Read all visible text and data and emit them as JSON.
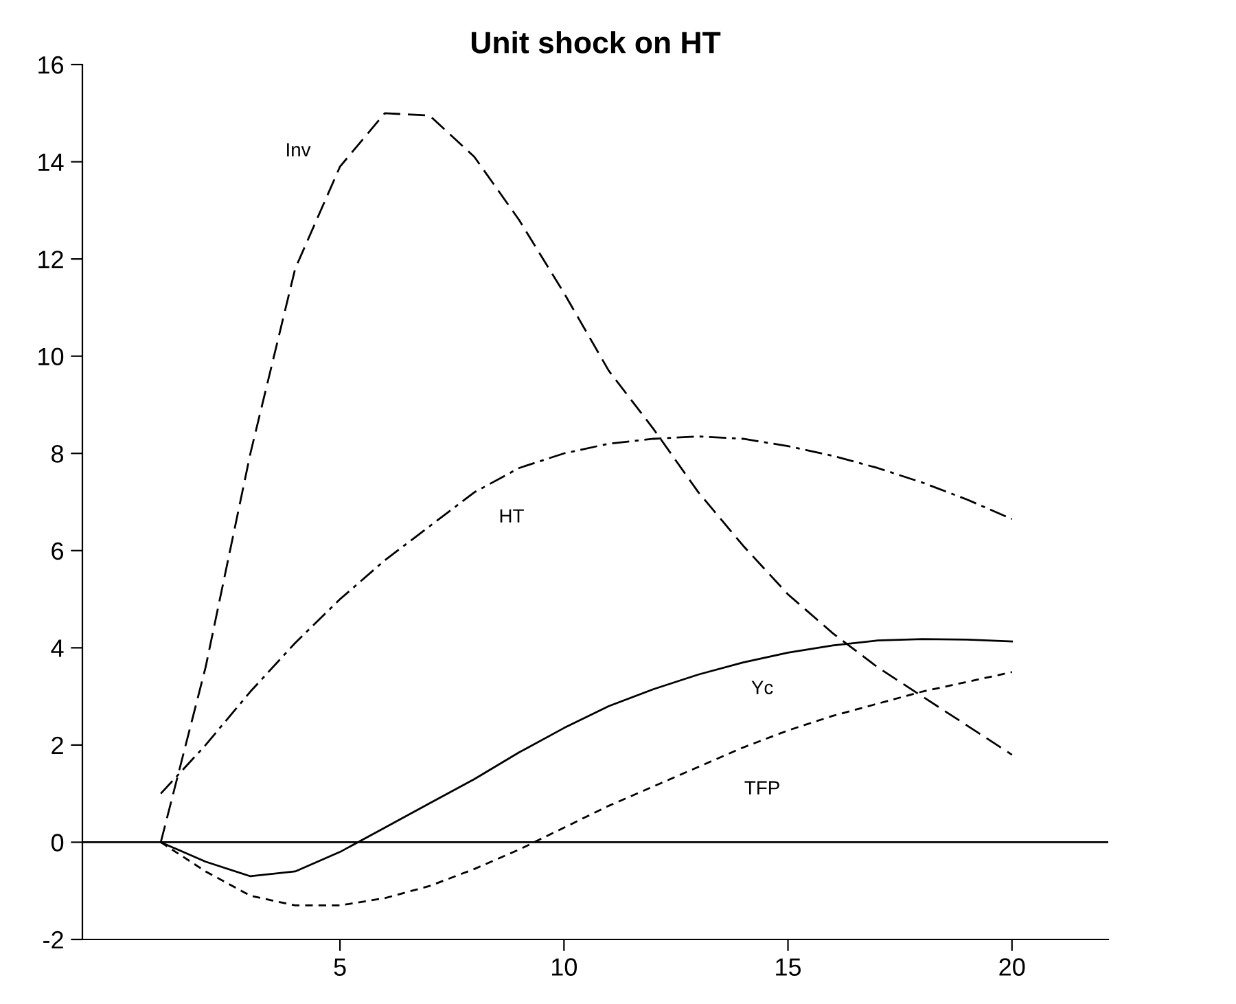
{
  "chart_data": {
    "type": "line",
    "title": "Unit shock on HT",
    "x": [
      1,
      2,
      3,
      4,
      5,
      6,
      7,
      8,
      9,
      10,
      11,
      12,
      13,
      14,
      15,
      16,
      17,
      18,
      19,
      20
    ],
    "series": [
      {
        "name": "Inv",
        "color": "#000000",
        "line_style": "dashed",
        "values": [
          0,
          3.6,
          8.0,
          11.8,
          13.9,
          15.0,
          14.95,
          14.1,
          12.8,
          11.3,
          9.7,
          8.5,
          7.2,
          6.1,
          5.1,
          4.3,
          3.6,
          3.0,
          2.4,
          1.8
        ]
      },
      {
        "name": "HT",
        "color": "#000000",
        "line_style": "dashdot",
        "values": [
          1.0,
          2.0,
          3.1,
          4.1,
          5.0,
          5.8,
          6.5,
          7.2,
          7.7,
          8.0,
          8.2,
          8.3,
          8.35,
          8.3,
          8.15,
          7.95,
          7.7,
          7.4,
          7.05,
          6.65
        ]
      },
      {
        "name": "Yc",
        "color": "#000000",
        "line_style": "solid",
        "values": [
          0,
          -0.4,
          -0.7,
          -0.6,
          -0.2,
          0.3,
          0.8,
          1.3,
          1.85,
          2.35,
          2.8,
          3.15,
          3.45,
          3.7,
          3.9,
          4.05,
          4.15,
          4.18,
          4.17,
          4.13
        ]
      },
      {
        "name": "TFP",
        "color": "#000000",
        "line_style": "dotted",
        "values": [
          0,
          -0.6,
          -1.1,
          -1.3,
          -1.3,
          -1.15,
          -0.9,
          -0.55,
          -0.15,
          0.3,
          0.75,
          1.15,
          1.55,
          1.95,
          2.3,
          2.6,
          2.85,
          3.1,
          3.3,
          3.5
        ]
      }
    ],
    "ref_lines": [
      {
        "axis": "y",
        "value": 0,
        "color": "#000000"
      }
    ],
    "xlim": [
      -0.75,
      22.15
    ],
    "ylim": [
      -2,
      16
    ],
    "xticks": [
      5,
      10,
      15,
      20
    ],
    "yticks": [
      -2,
      0,
      2,
      4,
      6,
      8,
      10,
      12,
      14,
      16
    ],
    "grid": false,
    "legend": false
  }
}
